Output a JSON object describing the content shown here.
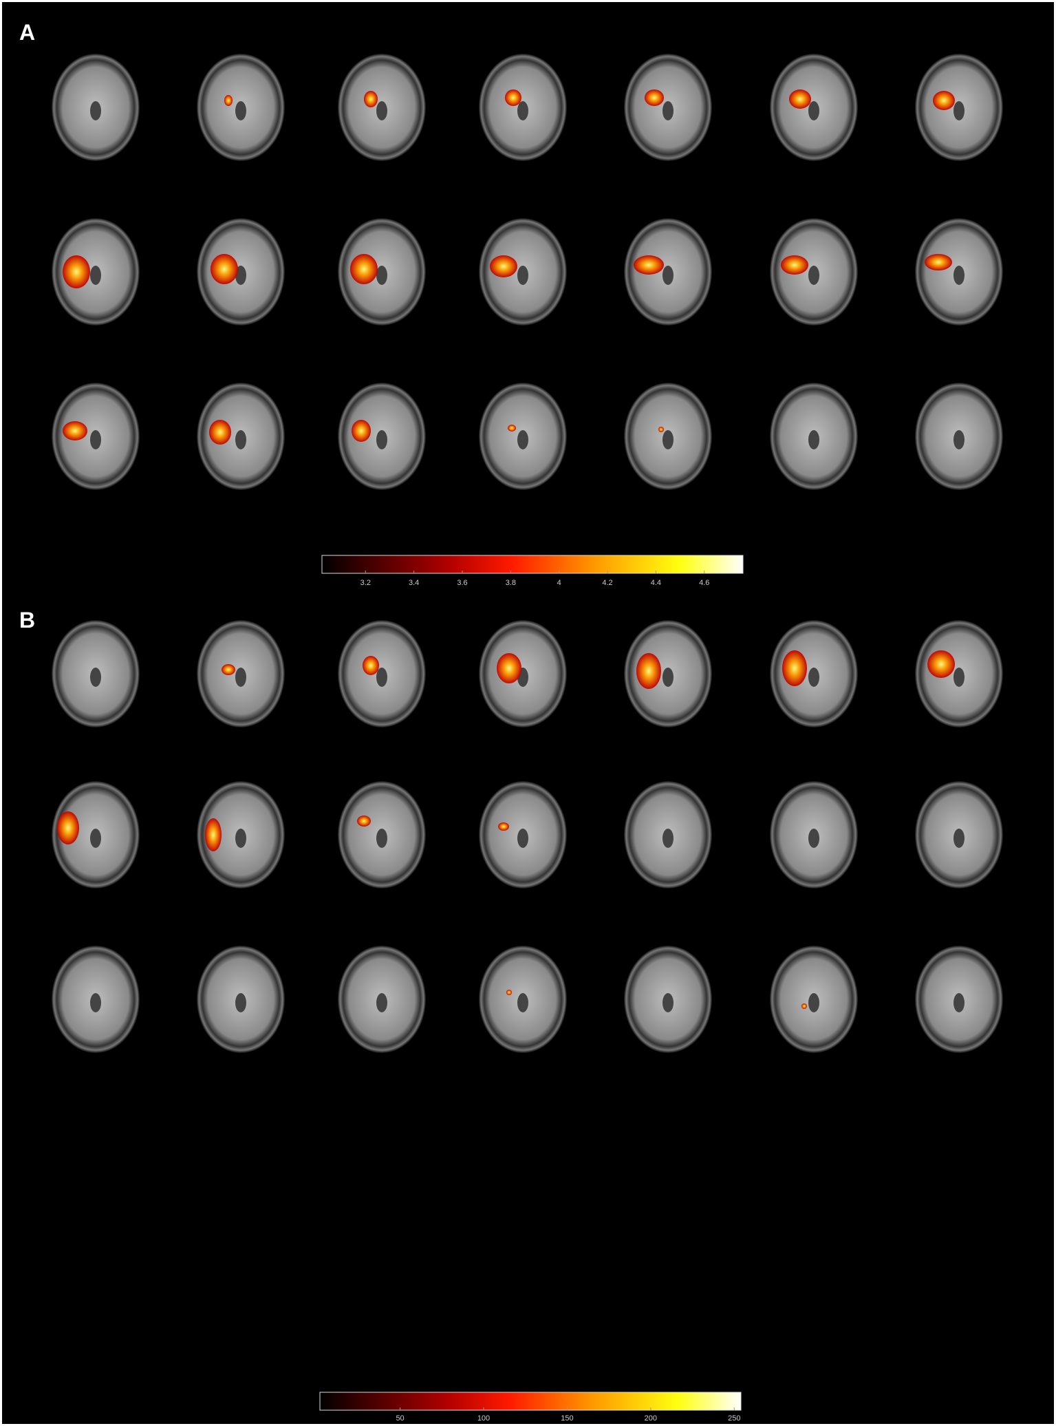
{
  "panels": [
    {
      "label": "A",
      "colorbar": {
        "lim": [
          3.02,
          4.76
        ],
        "ticks": [
          3.2,
          3.4,
          3.6,
          3.8,
          4,
          4.2,
          4.4,
          4.6
        ]
      }
    },
    {
      "label": "B",
      "colorbar": {
        "lim": [
          2,
          254
        ],
        "ticks": [
          50,
          100,
          150,
          200,
          250
        ]
      }
    }
  ]
}
